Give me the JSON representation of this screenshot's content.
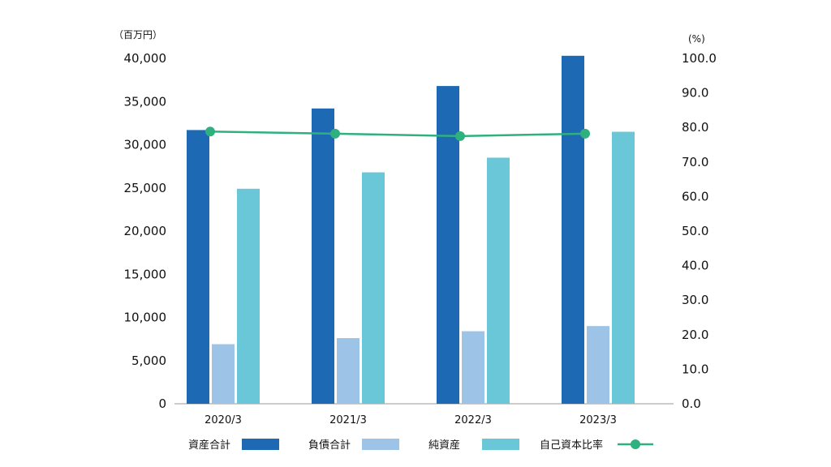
{
  "chart_data": {
    "type": "bar",
    "categories": [
      "2020/3",
      "2021/3",
      "2022/3",
      "2023/3"
    ],
    "series": [
      {
        "name": "資産合計",
        "type": "bar",
        "axis": "left",
        "color": "#1e69b4",
        "values": [
          31700,
          34200,
          36800,
          40300
        ]
      },
      {
        "name": "負債合計",
        "type": "bar",
        "axis": "left",
        "color": "#9dc3e6",
        "values": [
          6900,
          7600,
          8400,
          9000
        ]
      },
      {
        "name": "純資産",
        "type": "bar",
        "axis": "left",
        "color": "#6ac7d8",
        "values": [
          24900,
          26800,
          28500,
          31500
        ]
      },
      {
        "name": "自己資本比率",
        "type": "line",
        "axis": "right",
        "color": "#2fb07f",
        "values": [
          78.8,
          78.2,
          77.5,
          78.2
        ]
      }
    ],
    "left_axis": {
      "unit": "（百万円）",
      "ylim": [
        0,
        40000
      ],
      "ticks": [
        "0",
        "5,000",
        "10,000",
        "15,000",
        "20,000",
        "25,000",
        "30,000",
        "35,000",
        "40,000"
      ]
    },
    "right_axis": {
      "unit": "(%)",
      "ylim": [
        0,
        100
      ],
      "ticks": [
        "0.0",
        "10.0",
        "20.0",
        "30.0",
        "40.0",
        "50.0",
        "60.0",
        "70.0",
        "80.0",
        "90.0",
        "100.0"
      ]
    },
    "legend_position": "bottom",
    "grid": false
  }
}
